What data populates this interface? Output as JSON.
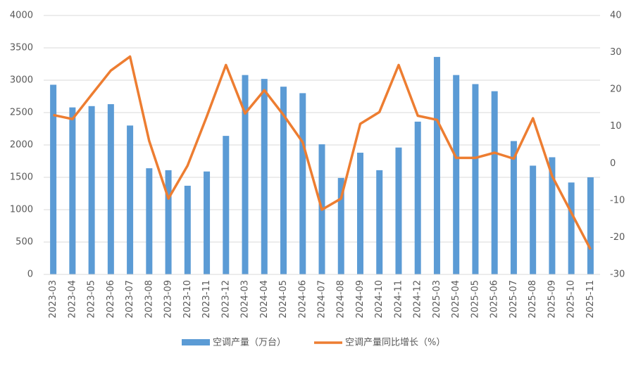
{
  "chart_data": {
    "type": "bar-line",
    "categories": [
      "2023-03",
      "2023-04",
      "2023-05",
      "2023-06",
      "2023-07",
      "2023-08",
      "2023-09",
      "2023-10",
      "2023-11",
      "2023-12",
      "2024-03",
      "2024-04",
      "2024-05",
      "2024-06",
      "2024-07",
      "2024-08",
      "2024-09",
      "2024-10",
      "2024-11",
      "2024-12",
      "2025-03",
      "2025-04",
      "2025-05",
      "2025-06",
      "2025-07",
      "2025-08",
      "2025-09",
      "2025-10",
      "2025-11"
    ],
    "series": [
      {
        "name": "空调产量（万台）",
        "type": "bar",
        "color": "#5b9bd5",
        "values": [
          2930,
          2580,
          2600,
          2630,
          2300,
          1640,
          1610,
          1370,
          1590,
          2140,
          3080,
          3020,
          2900,
          2800,
          2010,
          1490,
          1880,
          1610,
          1960,
          2360,
          3360,
          3080,
          2940,
          2830,
          2060,
          1680,
          1810,
          1420,
          1500
        ]
      },
      {
        "name": "空调产量同比增长（%）",
        "type": "line",
        "axis": "y2",
        "color": "#ed7d31",
        "values": [
          13.1,
          12,
          18.6,
          25.1,
          28.9,
          6.1,
          -9.5,
          -0.6,
          12.7,
          26.6,
          13.5,
          19.8,
          13.1,
          5.7,
          -12.5,
          -9.5,
          10.7,
          13.9,
          26.6,
          12.9,
          11.8,
          1.5,
          1.5,
          2.9,
          1.3,
          12.2,
          -3.4,
          -13.3,
          -23.2
        ]
      }
    ],
    "ylim": [
      0,
      4000
    ],
    "yticks": [
      0,
      500,
      1000,
      1500,
      2000,
      2500,
      3000,
      3500,
      4000
    ],
    "y2lim": [
      -30,
      40
    ],
    "y2ticks": [
      -30,
      -20,
      -10,
      0,
      10,
      20,
      30,
      40
    ],
    "grid": true,
    "legend": "bottom"
  }
}
